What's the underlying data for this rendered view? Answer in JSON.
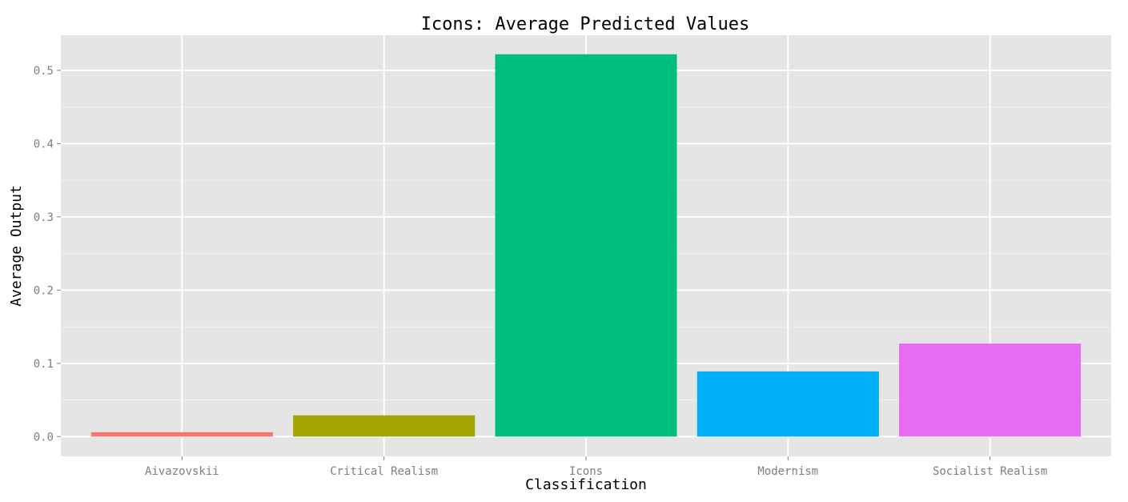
{
  "chart_data": {
    "type": "bar",
    "title": "Icons: Average Predicted Values",
    "xlabel": "Classification",
    "ylabel": "Average Output",
    "categories": [
      "Aivazovskii",
      "Critical Realism",
      "Icons",
      "Modernism",
      "Socialist Realism"
    ],
    "values": [
      0.006,
      0.029,
      0.522,
      0.089,
      0.127
    ],
    "colors": [
      "#F8766D",
      "#A3A500",
      "#00BF7D",
      "#00B0F6",
      "#E76BF3"
    ],
    "ylim": [
      -0.027,
      0.548
    ],
    "yticks": [
      0.0,
      0.1,
      0.2,
      0.3,
      0.4,
      0.5
    ],
    "ytick_labels": [
      "0.0",
      "0.1",
      "0.2",
      "0.3",
      "0.4",
      "0.5"
    ],
    "grid": true,
    "legend": "none",
    "panel_background": "#E5E5E5",
    "gridline_color": "#FFFFFF"
  }
}
